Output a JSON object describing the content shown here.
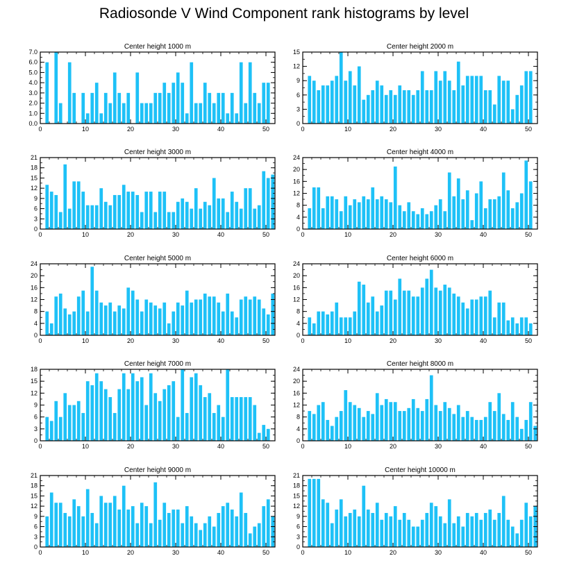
{
  "title": "Radiosonde V Wind Component rank histograms by level",
  "bar_color": "#1ec1f7",
  "chart_data": [
    {
      "type": "bar",
      "title": "Center height 1000 m",
      "xlim": [
        0,
        52
      ],
      "ylim": [
        0,
        7
      ],
      "yticks": [
        "0.0",
        "1.0",
        "2.0",
        "3.0",
        "4.0",
        "5.0",
        "6.0",
        "7.0"
      ],
      "ytick_values": [
        0,
        1,
        2,
        3,
        4,
        5,
        6,
        7
      ],
      "xticks": [
        0,
        10,
        20,
        30,
        40,
        50
      ],
      "x": [
        0,
        1,
        2,
        3,
        4,
        5,
        6,
        7,
        8,
        9,
        10,
        11,
        12,
        13,
        14,
        15,
        16,
        17,
        18,
        19,
        20,
        21,
        22,
        23,
        24,
        25,
        26,
        27,
        28,
        29,
        30,
        31,
        32,
        33,
        34,
        35,
        36,
        37,
        38,
        39,
        40,
        41,
        42,
        43,
        44,
        45,
        46,
        47,
        48,
        49,
        50,
        51
      ],
      "values": [
        0,
        6,
        0,
        7,
        2,
        0,
        6,
        3,
        0,
        3,
        1,
        3,
        4,
        1,
        3,
        2,
        5,
        3,
        2,
        3,
        0,
        5,
        2,
        2,
        2,
        3,
        3,
        4,
        3,
        4,
        5,
        4,
        1,
        6,
        2,
        2,
        4,
        3,
        2,
        3,
        3,
        1,
        3,
        1,
        6,
        2,
        6,
        3,
        2,
        4,
        4,
        0
      ]
    },
    {
      "type": "bar",
      "title": "Center height 2000 m",
      "xlim": [
        0,
        52
      ],
      "ylim": [
        0,
        15
      ],
      "yticks": [
        "0",
        "3",
        "6",
        "9",
        "12",
        "15"
      ],
      "ytick_values": [
        0,
        3,
        6,
        9,
        12,
        15
      ],
      "xticks": [
        0,
        10,
        20,
        30,
        40,
        50
      ],
      "x": [
        0,
        1,
        2,
        3,
        4,
        5,
        6,
        7,
        8,
        9,
        10,
        11,
        12,
        13,
        14,
        15,
        16,
        17,
        18,
        19,
        20,
        21,
        22,
        23,
        24,
        25,
        26,
        27,
        28,
        29,
        30,
        31,
        32,
        33,
        34,
        35,
        36,
        37,
        38,
        39,
        40,
        41,
        42,
        43,
        44,
        45,
        46,
        47,
        48,
        49,
        50,
        51
      ],
      "values": [
        0,
        10,
        9,
        7,
        8,
        8,
        9,
        10,
        15,
        9,
        11,
        8,
        12,
        5,
        6,
        7,
        9,
        8,
        6,
        7,
        6,
        8,
        7,
        7,
        6,
        7,
        11,
        7,
        7,
        11,
        9,
        11,
        9,
        7,
        13,
        8,
        10,
        10,
        10,
        10,
        7,
        7,
        4,
        10,
        9,
        9,
        3,
        6,
        8,
        11,
        11,
        0
      ]
    },
    {
      "type": "bar",
      "title": "Center height 3000 m",
      "xlim": [
        0,
        52
      ],
      "ylim": [
        0,
        21
      ],
      "yticks": [
        "0",
        "3",
        "6",
        "9",
        "12",
        "15",
        "18",
        "21"
      ],
      "ytick_values": [
        0,
        3,
        6,
        9,
        12,
        15,
        18,
        21
      ],
      "xticks": [
        0,
        10,
        20,
        30,
        40,
        50
      ],
      "x": [
        0,
        1,
        2,
        3,
        4,
        5,
        6,
        7,
        8,
        9,
        10,
        11,
        12,
        13,
        14,
        15,
        16,
        17,
        18,
        19,
        20,
        21,
        22,
        23,
        24,
        25,
        26,
        27,
        28,
        29,
        30,
        31,
        32,
        33,
        34,
        35,
        36,
        37,
        38,
        39,
        40,
        41,
        42,
        43,
        44,
        45,
        46,
        47,
        48,
        49,
        50,
        51
      ],
      "values": [
        0,
        13,
        11,
        10,
        5,
        19,
        6,
        14,
        14,
        11,
        7,
        7,
        7,
        12,
        8,
        7,
        10,
        10,
        13,
        11,
        11,
        10,
        5,
        11,
        11,
        5,
        11,
        11,
        5,
        5,
        8,
        9,
        8,
        6,
        12,
        6,
        8,
        7,
        15,
        9,
        9,
        5,
        11,
        8,
        6,
        12,
        12,
        6,
        7,
        17,
        15,
        16
      ]
    },
    {
      "type": "bar",
      "title": "Center height 4000 m",
      "xlim": [
        0,
        52
      ],
      "ylim": [
        0,
        24
      ],
      "yticks": [
        "0",
        "4",
        "8",
        "12",
        "16",
        "20",
        "24"
      ],
      "ytick_values": [
        0,
        4,
        8,
        12,
        16,
        20,
        24
      ],
      "xticks": [
        0,
        10,
        20,
        30,
        40,
        50
      ],
      "x": [
        0,
        1,
        2,
        3,
        4,
        5,
        6,
        7,
        8,
        9,
        10,
        11,
        12,
        13,
        14,
        15,
        16,
        17,
        18,
        19,
        20,
        21,
        22,
        23,
        24,
        25,
        26,
        27,
        28,
        29,
        30,
        31,
        32,
        33,
        34,
        35,
        36,
        37,
        38,
        39,
        40,
        41,
        42,
        43,
        44,
        45,
        46,
        47,
        48,
        49,
        50,
        51
      ],
      "values": [
        0,
        7,
        14,
        14,
        7,
        11,
        11,
        10,
        6,
        11,
        8,
        10,
        9,
        11,
        10,
        14,
        10,
        11,
        10,
        9,
        21,
        8,
        6,
        9,
        6,
        5,
        7,
        5,
        6,
        8,
        10,
        6,
        19,
        11,
        17,
        10,
        13,
        3,
        12,
        16,
        7,
        10,
        10,
        11,
        19,
        13,
        7,
        9,
        12,
        23,
        16,
        0
      ]
    },
    {
      "type": "bar",
      "title": "Center height 5000 m",
      "xlim": [
        0,
        52
      ],
      "ylim": [
        0,
        24
      ],
      "yticks": [
        "0",
        "4",
        "8",
        "12",
        "16",
        "20",
        "24"
      ],
      "ytick_values": [
        0,
        4,
        8,
        12,
        16,
        20,
        24
      ],
      "xticks": [
        0,
        10,
        20,
        30,
        40,
        50
      ],
      "x": [
        0,
        1,
        2,
        3,
        4,
        5,
        6,
        7,
        8,
        9,
        10,
        11,
        12,
        13,
        14,
        15,
        16,
        17,
        18,
        19,
        20,
        21,
        22,
        23,
        24,
        25,
        26,
        27,
        28,
        29,
        30,
        31,
        32,
        33,
        34,
        35,
        36,
        37,
        38,
        39,
        40,
        41,
        42,
        43,
        44,
        45,
        46,
        47,
        48,
        49,
        50,
        51
      ],
      "values": [
        0,
        8,
        4,
        13,
        14,
        9,
        7,
        8,
        13,
        15,
        8,
        23,
        15,
        11,
        10,
        11,
        8,
        10,
        9,
        16,
        15,
        12,
        8,
        12,
        11,
        10,
        9,
        11,
        4,
        8,
        11,
        10,
        15,
        11,
        12,
        12,
        14,
        13,
        13,
        11,
        8,
        14,
        8,
        6,
        12,
        13,
        12,
        13,
        12,
        9,
        7,
        14
      ]
    },
    {
      "type": "bar",
      "title": "Center height 6000 m",
      "xlim": [
        0,
        52
      ],
      "ylim": [
        0,
        24
      ],
      "yticks": [
        "0",
        "4",
        "8",
        "12",
        "16",
        "20",
        "24"
      ],
      "ytick_values": [
        0,
        4,
        8,
        12,
        16,
        20,
        24
      ],
      "xticks": [
        0,
        10,
        20,
        30,
        40,
        50
      ],
      "x": [
        0,
        1,
        2,
        3,
        4,
        5,
        6,
        7,
        8,
        9,
        10,
        11,
        12,
        13,
        14,
        15,
        16,
        17,
        18,
        19,
        20,
        21,
        22,
        23,
        24,
        25,
        26,
        27,
        28,
        29,
        30,
        31,
        32,
        33,
        34,
        35,
        36,
        37,
        38,
        39,
        40,
        41,
        42,
        43,
        44,
        45,
        46,
        47,
        48,
        49,
        50,
        51
      ],
      "values": [
        0,
        6,
        4,
        8,
        8,
        7,
        8,
        11,
        6,
        6,
        6,
        8,
        18,
        17,
        11,
        13,
        8,
        10,
        15,
        15,
        12,
        19,
        15,
        15,
        13,
        13,
        16,
        19,
        22,
        16,
        15,
        17,
        16,
        14,
        13,
        11,
        9,
        12,
        12,
        13,
        13,
        15,
        6,
        11,
        11,
        5,
        6,
        4,
        6,
        6,
        4,
        0
      ]
    },
    {
      "type": "bar",
      "title": "Center height 7000 m",
      "xlim": [
        0,
        52
      ],
      "ylim": [
        0,
        18
      ],
      "yticks": [
        "0",
        "3",
        "6",
        "9",
        "12",
        "15",
        "18"
      ],
      "ytick_values": [
        0,
        3,
        6,
        9,
        12,
        15,
        18
      ],
      "xticks": [
        0,
        10,
        20,
        30,
        40,
        50
      ],
      "x": [
        0,
        1,
        2,
        3,
        4,
        5,
        6,
        7,
        8,
        9,
        10,
        11,
        12,
        13,
        14,
        15,
        16,
        17,
        18,
        19,
        20,
        21,
        22,
        23,
        24,
        25,
        26,
        27,
        28,
        29,
        30,
        31,
        32,
        33,
        34,
        35,
        36,
        37,
        38,
        39,
        40,
        41,
        42,
        43,
        44,
        45,
        46,
        47,
        48,
        49,
        50,
        51
      ],
      "values": [
        0,
        6,
        5,
        10,
        6,
        12,
        9,
        9,
        10,
        7,
        15,
        14,
        17,
        15,
        13,
        11,
        7,
        13,
        17,
        13,
        17,
        15,
        16,
        9,
        17,
        12,
        10,
        13,
        14,
        15,
        6,
        18,
        7,
        16,
        17,
        14,
        11,
        12,
        7,
        9,
        6,
        18,
        11,
        11,
        11,
        11,
        11,
        9,
        2,
        4,
        3,
        0
      ]
    },
    {
      "type": "bar",
      "title": "Center height 8000 m",
      "xlim": [
        0,
        52
      ],
      "ylim": [
        0,
        24
      ],
      "yticks": [
        "0",
        "4",
        "8",
        "12",
        "16",
        "20",
        "24"
      ],
      "ytick_values": [
        0,
        4,
        8,
        12,
        16,
        20,
        24
      ],
      "xticks": [
        0,
        10,
        20,
        30,
        40,
        50
      ],
      "x": [
        0,
        1,
        2,
        3,
        4,
        5,
        6,
        7,
        8,
        9,
        10,
        11,
        12,
        13,
        14,
        15,
        16,
        17,
        18,
        19,
        20,
        21,
        22,
        23,
        24,
        25,
        26,
        27,
        28,
        29,
        30,
        31,
        32,
        33,
        34,
        35,
        36,
        37,
        38,
        39,
        40,
        41,
        42,
        43,
        44,
        45,
        46,
        47,
        48,
        49,
        50,
        51
      ],
      "values": [
        0,
        10,
        9,
        12,
        13,
        7,
        5,
        8,
        10,
        17,
        13,
        12,
        11,
        8,
        10,
        9,
        16,
        12,
        14,
        13,
        13,
        10,
        10,
        11,
        14,
        11,
        10,
        14,
        22,
        12,
        10,
        13,
        11,
        9,
        12,
        8,
        10,
        8,
        7,
        7,
        8,
        13,
        10,
        16,
        9,
        7,
        13,
        8,
        4,
        7,
        13,
        5
      ]
    },
    {
      "type": "bar",
      "title": "Center height 9000 m",
      "xlim": [
        0,
        52
      ],
      "ylim": [
        0,
        21
      ],
      "yticks": [
        "0",
        "3",
        "6",
        "9",
        "12",
        "15",
        "18",
        "21"
      ],
      "ytick_values": [
        0,
        3,
        6,
        9,
        12,
        15,
        18,
        21
      ],
      "xticks": [
        0,
        10,
        20,
        30,
        40,
        50
      ],
      "x": [
        0,
        1,
        2,
        3,
        4,
        5,
        6,
        7,
        8,
        9,
        10,
        11,
        12,
        13,
        14,
        15,
        16,
        17,
        18,
        19,
        20,
        21,
        22,
        23,
        24,
        25,
        26,
        27,
        28,
        29,
        30,
        31,
        32,
        33,
        34,
        35,
        36,
        37,
        38,
        39,
        40,
        41,
        42,
        43,
        44,
        45,
        46,
        47,
        48,
        49,
        50,
        51
      ],
      "values": [
        0,
        9,
        16,
        13,
        13,
        10,
        9,
        14,
        12,
        9,
        17,
        10,
        7,
        15,
        13,
        13,
        15,
        11,
        18,
        11,
        12,
        7,
        13,
        12,
        7,
        19,
        8,
        13,
        10,
        11,
        11,
        7,
        12,
        9,
        7,
        5,
        7,
        9,
        6,
        10,
        12,
        13,
        11,
        9,
        16,
        10,
        4,
        6,
        7,
        12,
        14,
        9
      ]
    },
    {
      "type": "bar",
      "title": "Center height 10000 m",
      "xlim": [
        0,
        52
      ],
      "ylim": [
        0,
        21
      ],
      "yticks": [
        "0",
        "3",
        "6",
        "9",
        "12",
        "15",
        "18",
        "21"
      ],
      "ytick_values": [
        0,
        3,
        6,
        9,
        12,
        15,
        18,
        21
      ],
      "xticks": [
        0,
        10,
        20,
        30,
        40,
        50
      ],
      "x": [
        0,
        1,
        2,
        3,
        4,
        5,
        6,
        7,
        8,
        9,
        10,
        11,
        12,
        13,
        14,
        15,
        16,
        17,
        18,
        19,
        20,
        21,
        22,
        23,
        24,
        25,
        26,
        27,
        28,
        29,
        30,
        31,
        32,
        33,
        34,
        35,
        36,
        37,
        38,
        39,
        40,
        41,
        42,
        43,
        44,
        45,
        46,
        47,
        48,
        49,
        50,
        51
      ],
      "values": [
        0,
        20,
        20,
        20,
        14,
        13,
        7,
        11,
        14,
        9,
        10,
        11,
        9,
        18,
        11,
        10,
        13,
        8,
        10,
        9,
        12,
        8,
        10,
        8,
        6,
        6,
        8,
        10,
        13,
        12,
        9,
        7,
        14,
        7,
        9,
        6,
        10,
        9,
        10,
        8,
        10,
        11,
        8,
        10,
        15,
        8,
        6,
        4,
        8,
        13,
        9,
        12
      ]
    }
  ]
}
